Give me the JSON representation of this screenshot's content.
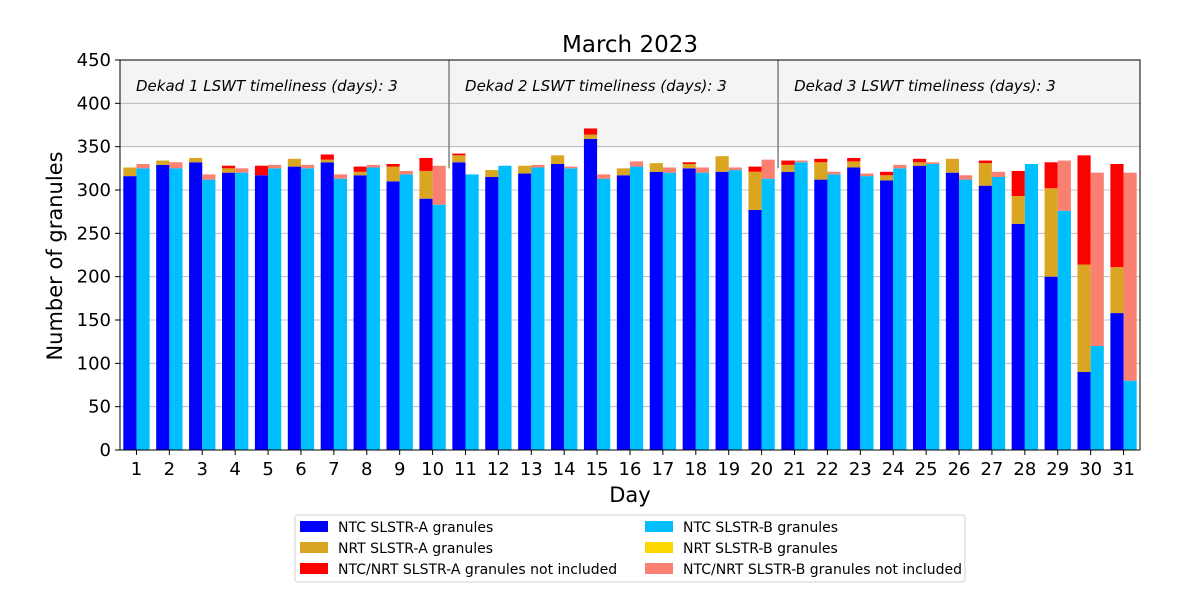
{
  "chart_data": {
    "type": "bar",
    "title": "March 2023",
    "xlabel": "Day",
    "ylabel": "Number of granules",
    "ylim": [
      0,
      450
    ],
    "yticks": [
      0,
      50,
      100,
      150,
      200,
      250,
      300,
      350,
      400,
      450
    ],
    "categories": [
      "1",
      "2",
      "3",
      "4",
      "5",
      "6",
      "7",
      "8",
      "9",
      "10",
      "11",
      "12",
      "13",
      "14",
      "15",
      "16",
      "17",
      "18",
      "19",
      "20",
      "21",
      "22",
      "23",
      "24",
      "25",
      "26",
      "27",
      "28",
      "29",
      "30",
      "31"
    ],
    "grid": "horizontal",
    "legend_position": "bottom",
    "annotations": [
      {
        "text": "Dekad 1 LSWT timeliness (days): 3",
        "after_day": 0
      },
      {
        "text": "Dekad 2 LSWT timeliness (days): 3",
        "after_day": 10
      },
      {
        "text": "Dekad 3 LSWT timeliness (days): 3",
        "after_day": 20
      }
    ],
    "series": [
      {
        "name": "NTC SLSTR-A granules",
        "color": "#0000ff",
        "group": "A",
        "values": [
          316,
          329,
          332,
          320,
          317,
          327,
          332,
          317,
          310,
          290,
          332,
          315,
          319,
          330,
          359,
          317,
          321,
          325,
          321,
          277,
          321,
          312,
          326,
          311,
          328,
          320,
          305,
          261,
          200,
          90,
          158
        ]
      },
      {
        "name": "NRT SLSTR-A granules",
        "color": "#daa520",
        "group": "A",
        "values": [
          10,
          5,
          5,
          5,
          0,
          9,
          3,
          4,
          17,
          32,
          8,
          8,
          9,
          10,
          5,
          8,
          10,
          5,
          18,
          44,
          8,
          20,
          7,
          6,
          4,
          16,
          26,
          32,
          102,
          124,
          53
        ]
      },
      {
        "name": "NTC/NRT SLSTR-A granules not included",
        "color": "#ff0000",
        "group": "A",
        "values": [
          0,
          0,
          0,
          3,
          11,
          0,
          6,
          6,
          3,
          15,
          2,
          0,
          0,
          0,
          7,
          0,
          0,
          2,
          0,
          6,
          5,
          4,
          4,
          4,
          4,
          0,
          3,
          29,
          30,
          126,
          119
        ]
      },
      {
        "name": "NTC SLSTR-B granules",
        "color": "#00bfff",
        "group": "B",
        "values": [
          325,
          325,
          312,
          320,
          325,
          325,
          313,
          326,
          318,
          283,
          318,
          328,
          326,
          325,
          313,
          327,
          320,
          320,
          323,
          313,
          332,
          318,
          316,
          325,
          330,
          312,
          315,
          330,
          276,
          120,
          80
        ]
      },
      {
        "name": "NRT SLSTR-B granules",
        "color": "#ffd700",
        "group": "B",
        "values": [
          0,
          0,
          0,
          0,
          0,
          0,
          0,
          0,
          0,
          0,
          0,
          0,
          0,
          0,
          0,
          0,
          0,
          0,
          0,
          0,
          0,
          0,
          0,
          0,
          0,
          0,
          0,
          0,
          0,
          0,
          0
        ]
      },
      {
        "name": "NTC/NRT SLSTR-B granules not included",
        "color": "#fa8072",
        "group": "B",
        "values": [
          5,
          7,
          6,
          5,
          4,
          4,
          5,
          3,
          4,
          45,
          0,
          0,
          3,
          2,
          5,
          6,
          6,
          6,
          3,
          22,
          2,
          3,
          3,
          4,
          2,
          5,
          6,
          0,
          58,
          200,
          240
        ]
      }
    ]
  }
}
